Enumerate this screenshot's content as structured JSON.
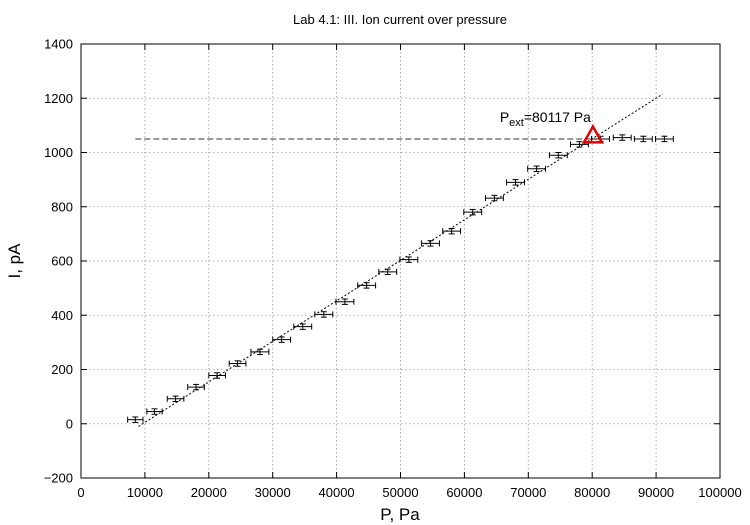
{
  "chart_data": {
    "type": "scatter",
    "title": "Lab 4.1: III. Ion current over pressure",
    "xlabel": "P, Pa",
    "ylabel": "I, pA",
    "xlim": [
      0,
      100000
    ],
    "ylim": [
      -200,
      1400
    ],
    "xticks": [
      0,
      10000,
      20000,
      30000,
      40000,
      50000,
      60000,
      70000,
      80000,
      90000,
      100000
    ],
    "yticks": [
      -200,
      0,
      200,
      400,
      600,
      800,
      1000,
      1200,
      1400
    ],
    "grid": true,
    "series": [
      {
        "style": "points-with-x-and-y-errorbars",
        "points": [
          {
            "x": 8500,
            "y": 15,
            "xerr": 1200,
            "yerr": 10
          },
          {
            "x": 11500,
            "y": 45,
            "xerr": 1200,
            "yerr": 10
          },
          {
            "x": 14800,
            "y": 92,
            "xerr": 1300,
            "yerr": 10
          },
          {
            "x": 18000,
            "y": 135,
            "xerr": 1300,
            "yerr": 10
          },
          {
            "x": 21300,
            "y": 178,
            "xerr": 1300,
            "yerr": 10
          },
          {
            "x": 24500,
            "y": 222,
            "xerr": 1300,
            "yerr": 10
          },
          {
            "x": 28000,
            "y": 265,
            "xerr": 1400,
            "yerr": 10
          },
          {
            "x": 31400,
            "y": 310,
            "xerr": 1400,
            "yerr": 10
          },
          {
            "x": 34700,
            "y": 358,
            "xerr": 1400,
            "yerr": 10
          },
          {
            "x": 38000,
            "y": 403,
            "xerr": 1400,
            "yerr": 10
          },
          {
            "x": 41300,
            "y": 450,
            "xerr": 1400,
            "yerr": 10
          },
          {
            "x": 44700,
            "y": 510,
            "xerr": 1400,
            "yerr": 10
          },
          {
            "x": 48000,
            "y": 560,
            "xerr": 1400,
            "yerr": 10
          },
          {
            "x": 51300,
            "y": 605,
            "xerr": 1400,
            "yerr": 10
          },
          {
            "x": 54700,
            "y": 665,
            "xerr": 1400,
            "yerr": 10
          },
          {
            "x": 58000,
            "y": 710,
            "xerr": 1400,
            "yerr": 10
          },
          {
            "x": 61300,
            "y": 780,
            "xerr": 1400,
            "yerr": 10
          },
          {
            "x": 64700,
            "y": 832,
            "xerr": 1400,
            "yerr": 10
          },
          {
            "x": 68000,
            "y": 890,
            "xerr": 1400,
            "yerr": 10
          },
          {
            "x": 71300,
            "y": 940,
            "xerr": 1400,
            "yerr": 10
          },
          {
            "x": 74700,
            "y": 990,
            "xerr": 1400,
            "yerr": 10
          },
          {
            "x": 78000,
            "y": 1030,
            "xerr": 1400,
            "yerr": 10
          },
          {
            "x": 81300,
            "y": 1050,
            "xerr": 1400,
            "yerr": 10
          },
          {
            "x": 84700,
            "y": 1055,
            "xerr": 1400,
            "yerr": 10
          },
          {
            "x": 88000,
            "y": 1050,
            "xerr": 1400,
            "yerr": 10
          },
          {
            "x": 91300,
            "y": 1050,
            "xerr": 1400,
            "yerr": 10
          }
        ]
      }
    ],
    "fit_line": {
      "x": [
        9000,
        91000
      ],
      "y": [
        -10,
        1215
      ]
    },
    "saturation_line": {
      "x": [
        8500,
        80117
      ],
      "y": [
        1050,
        1050
      ]
    },
    "marker": {
      "x": 80117,
      "y": 1062,
      "shape": "triangle",
      "color": "#e00000"
    },
    "annotation": {
      "x": 80117,
      "y": 1050,
      "prefix": "P",
      "subscript": "ext",
      "suffix": "=80117 Pa"
    }
  }
}
